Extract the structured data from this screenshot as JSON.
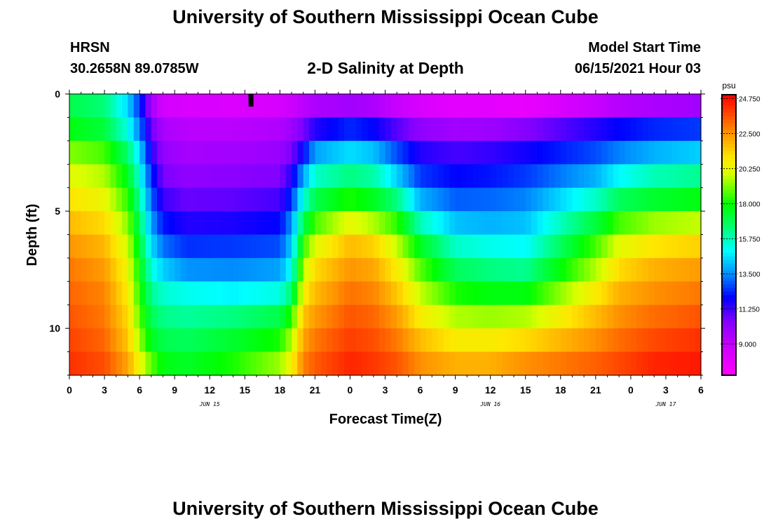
{
  "header": {
    "title": "University of Southern Mississippi Ocean Cube",
    "station": "HRSN",
    "coords": "30.2658N  89.0785W",
    "subtitle": "2-D Salinity at Depth",
    "start_label": "Model Start Time",
    "start_value": "06/15/2021 Hour 03"
  },
  "footer": {
    "title": "University of Southern Mississippi Ocean Cube"
  },
  "chart_data": {
    "type": "heatmap",
    "title": "2-D Salinity at Depth",
    "xlabel": "Forecast Time(Z)",
    "ylabel": "Depth (ft)",
    "x_range_hours": [
      0,
      54
    ],
    "y_range_ft": [
      0,
      12
    ],
    "x_ticks": [
      "0",
      "3",
      "6",
      "9",
      "12",
      "15",
      "18",
      "21",
      "0",
      "3",
      "6",
      "9",
      "12",
      "15",
      "18",
      "21",
      "0",
      "3",
      "6"
    ],
    "y_ticks": [
      "0",
      "5",
      "10"
    ],
    "date_labels": [
      {
        "label": "JUN 15",
        "hour": 12
      },
      {
        "label": "JUN 16",
        "hour": 36
      },
      {
        "label": "JUN 17",
        "hour": 51
      }
    ],
    "depth_layers_ft": [
      0.5,
      1.5,
      2.5,
      3.5,
      4.5,
      5.5,
      6.5,
      7.5,
      8.5,
      9.5,
      10.5,
      11.5
    ],
    "salinity_profiles_psu": [
      {
        "hour": 0,
        "values": [
          17.0,
          17.8,
          19.2,
          20.2,
          21.0,
          21.8,
          22.5,
          23.0,
          23.3,
          23.6,
          23.9,
          24.2
        ]
      },
      {
        "hour": 3,
        "values": [
          16.5,
          17.2,
          18.6,
          19.6,
          20.4,
          21.2,
          21.9,
          22.4,
          22.8,
          23.0,
          23.3,
          23.7
        ]
      },
      {
        "hour": 5,
        "values": [
          14.5,
          15.3,
          16.6,
          17.6,
          18.4,
          19.2,
          19.9,
          20.4,
          20.8,
          21.2,
          21.6,
          22.2
        ]
      },
      {
        "hour": 6,
        "values": [
          12.5,
          13.3,
          14.6,
          15.4,
          16.1,
          16.8,
          17.4,
          17.9,
          18.3,
          18.8,
          19.4,
          20.4
        ]
      },
      {
        "hour": 7,
        "values": [
          9.8,
          10.8,
          11.6,
          12.4,
          13.1,
          13.8,
          14.6,
          15.4,
          16.2,
          16.9,
          17.6,
          18.8
        ]
      },
      {
        "hour": 8,
        "values": [
          8.6,
          9.6,
          10.1,
          10.6,
          11.3,
          12.2,
          13.2,
          14.4,
          15.5,
          16.3,
          17.0,
          17.8
        ]
      },
      {
        "hour": 10,
        "values": [
          8.4,
          9.3,
          9.7,
          10.2,
          10.8,
          11.6,
          12.5,
          13.6,
          15.2,
          16.1,
          16.8,
          17.5
        ]
      },
      {
        "hour": 14,
        "values": [
          8.3,
          9.3,
          9.8,
          10.3,
          10.9,
          11.7,
          12.6,
          13.5,
          14.9,
          16.4,
          17.4,
          18.2
        ]
      },
      {
        "hour": 18,
        "values": [
          8.5,
          9.5,
          10.0,
          10.5,
          11.2,
          12.0,
          12.8,
          13.8,
          15.3,
          17.0,
          18.2,
          19.4
        ]
      },
      {
        "hour": 19,
        "values": [
          8.8,
          9.9,
          10.6,
          11.6,
          12.5,
          13.6,
          14.4,
          15.2,
          16.6,
          18.4,
          19.6,
          20.6
        ]
      },
      {
        "hour": 20,
        "values": [
          9.3,
          10.6,
          12.0,
          13.8,
          15.4,
          17.0,
          18.4,
          19.6,
          20.6,
          21.6,
          22.2,
          22.8
        ]
      },
      {
        "hour": 21,
        "values": [
          9.6,
          11.6,
          13.8,
          15.6,
          17.0,
          18.6,
          20.2,
          21.2,
          21.8,
          22.4,
          23.0,
          23.5
        ]
      },
      {
        "hour": 24,
        "values": [
          9.8,
          12.4,
          14.6,
          16.4,
          18.2,
          20.3,
          21.8,
          22.5,
          23.1,
          23.6,
          24.0,
          24.4
        ]
      },
      {
        "hour": 26,
        "values": [
          9.6,
          12.0,
          14.2,
          16.0,
          17.6,
          19.6,
          21.4,
          22.2,
          22.8,
          23.3,
          23.7,
          24.1
        ]
      },
      {
        "hour": 28,
        "values": [
          9.0,
          11.0,
          12.8,
          14.4,
          16.4,
          18.4,
          19.8,
          20.8,
          21.6,
          22.4,
          23.0,
          23.6
        ]
      },
      {
        "hour": 30,
        "values": [
          8.4,
          10.2,
          11.6,
          12.6,
          14.0,
          15.8,
          17.6,
          18.8,
          19.8,
          20.8,
          21.8,
          22.6
        ]
      },
      {
        "hour": 33,
        "values": [
          8.0,
          9.8,
          11.2,
          12.0,
          13.0,
          14.2,
          15.6,
          16.8,
          18.2,
          19.6,
          20.8,
          22.0
        ]
      },
      {
        "hour": 36,
        "values": [
          8.0,
          9.9,
          11.4,
          12.2,
          13.1,
          14.0,
          15.2,
          16.4,
          17.8,
          19.4,
          20.8,
          22.0
        ]
      },
      {
        "hour": 39,
        "values": [
          7.8,
          10.4,
          11.8,
          12.6,
          13.4,
          14.2,
          15.0,
          16.2,
          17.8,
          19.6,
          21.2,
          22.6
        ]
      },
      {
        "hour": 45,
        "values": [
          9.0,
          11.6,
          12.8,
          14.0,
          15.6,
          17.2,
          18.6,
          19.6,
          20.8,
          21.8,
          22.6,
          23.4
        ]
      },
      {
        "hour": 47,
        "values": [
          9.4,
          12.0,
          13.4,
          15.0,
          16.8,
          18.6,
          20.2,
          21.2,
          22.0,
          22.6,
          23.2,
          23.8
        ]
      },
      {
        "hour": 50,
        "values": [
          9.6,
          12.4,
          14.0,
          15.8,
          17.4,
          19.4,
          21.0,
          22.0,
          22.6,
          23.2,
          23.8,
          24.4
        ]
      },
      {
        "hour": 54,
        "values": [
          9.8,
          12.6,
          14.4,
          16.2,
          17.8,
          19.8,
          21.4,
          22.4,
          23.0,
          23.6,
          24.2,
          24.6
        ]
      }
    ],
    "colorbar": {
      "unit": "psu",
      "min": 7.0,
      "max": 25.0,
      "ticks": [
        "24.750",
        "22.500",
        "20.250",
        "18.000",
        "15.750",
        "13.500",
        "11.250",
        "9.000"
      ],
      "tick_values": [
        24.75,
        22.5,
        20.25,
        18.0,
        15.75,
        13.5,
        11.25,
        9.0
      ]
    },
    "marker_hour": 15.5,
    "colors": {
      "magenta": "#ff00ff",
      "violet": "#9900ff",
      "blue": "#0000ff",
      "cyan": "#00ffff",
      "green": "#00ff00",
      "yellow": "#ffff00",
      "orange": "#ff9900",
      "red": "#ff0000"
    }
  }
}
